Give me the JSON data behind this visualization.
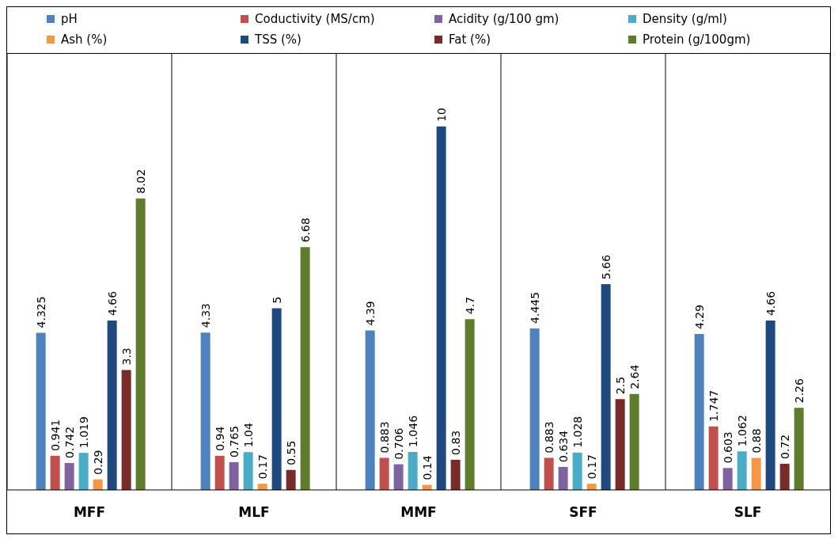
{
  "chart_data": {
    "type": "bar",
    "categories": [
      "MFF",
      "MLF",
      "MMF",
      "SFF",
      "SLF"
    ],
    "series": [
      {
        "name": "pH",
        "color": "#4f81bd",
        "values": [
          4.325,
          4.33,
          4.39,
          4.445,
          4.29
        ]
      },
      {
        "name": "Coductivity (MS/cm)",
        "color": "#c0504d",
        "values": [
          0.941,
          0.94,
          0.883,
          0.883,
          1.747
        ]
      },
      {
        "name": "Acidity (g/100 gm)",
        "color": "#8064a2",
        "values": [
          0.742,
          0.765,
          0.706,
          0.634,
          0.603
        ]
      },
      {
        "name": "Density (g/ml)",
        "color": "#4bacc6",
        "values": [
          1.019,
          1.04,
          1.046,
          1.028,
          1.062
        ]
      },
      {
        "name": "Ash (%)",
        "color": "#f79646",
        "values": [
          0.29,
          0.17,
          0.14,
          0.17,
          0.88
        ]
      },
      {
        "name": "TSS (%)",
        "color": "#1f497d",
        "values": [
          4.66,
          5,
          10,
          5.66,
          4.66
        ]
      },
      {
        "name": "Fat (%)",
        "color": "#772c2a",
        "values": [
          3.3,
          0.55,
          0.83,
          2.5,
          0.72
        ]
      },
      {
        "name": "Protein (g/100gm)",
        "color": "#5f7b2e",
        "values": [
          8.02,
          6.68,
          4.7,
          2.64,
          2.26
        ]
      }
    ],
    "data_labels": true,
    "grid": "x",
    "legend": "top"
  }
}
